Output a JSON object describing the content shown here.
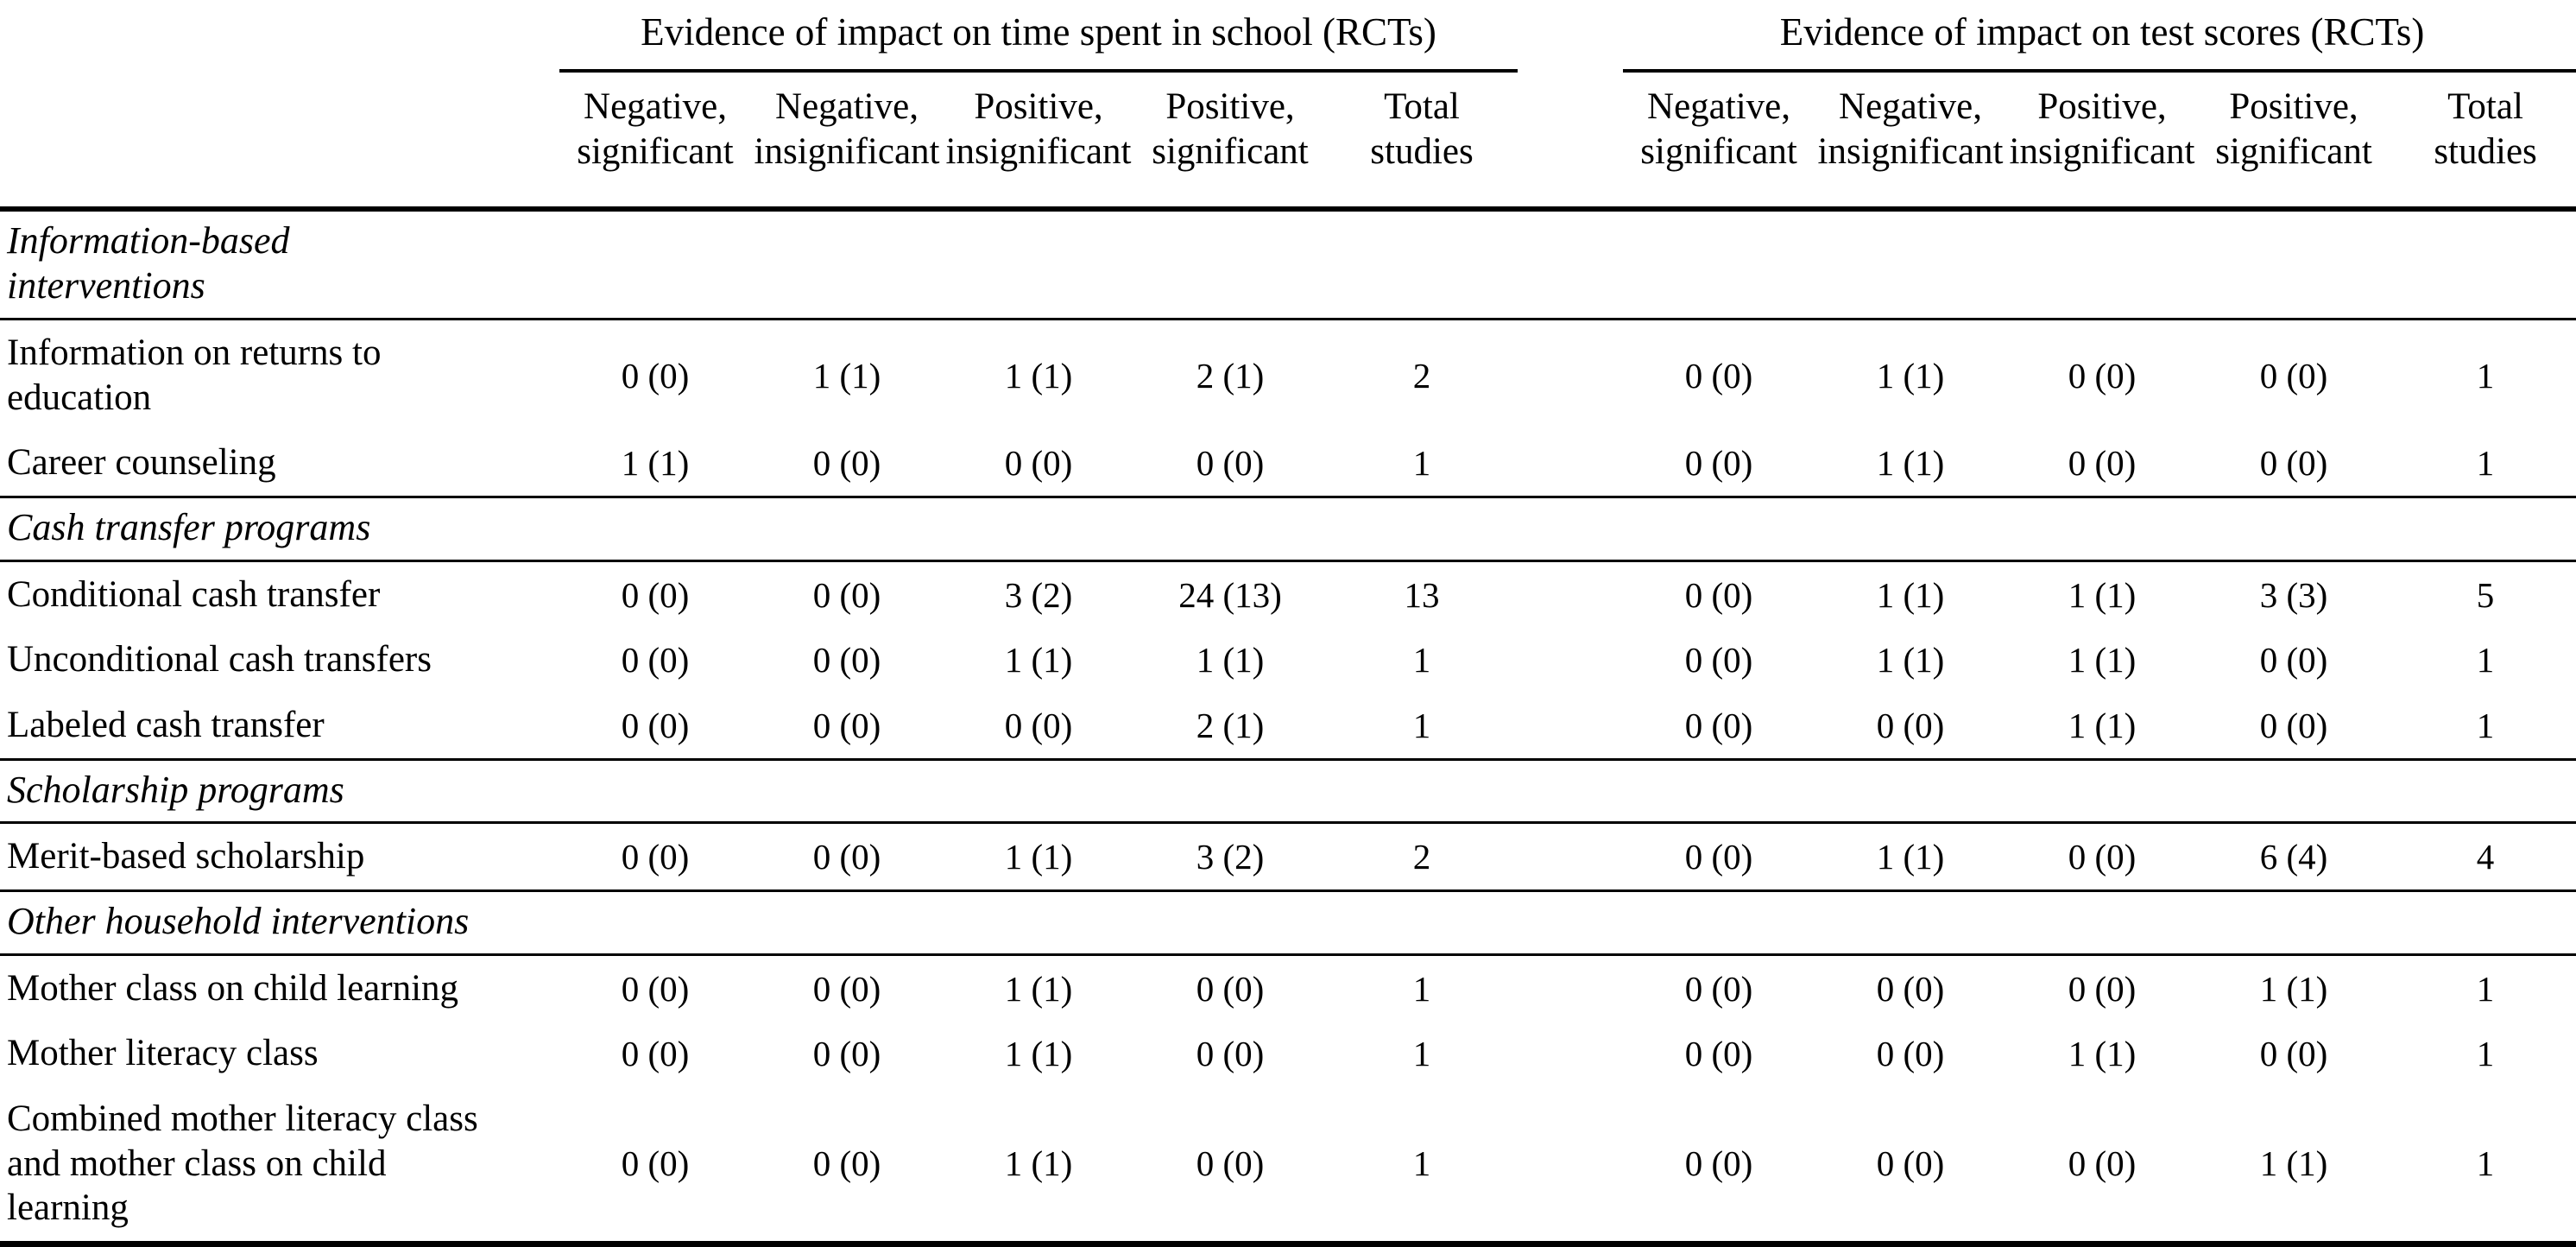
{
  "page": {
    "background": "#ffffff",
    "text_color": "#000000",
    "rule_color": "#000000"
  },
  "table": {
    "groups": [
      {
        "title": "Evidence of impact on time spent in school (RCTs)"
      },
      {
        "title": "Evidence of impact on test scores (RCTs)"
      }
    ],
    "columns": [
      {
        "line1": "Negative,",
        "line2": "significant"
      },
      {
        "line1": "Negative,",
        "line2": "insignificant"
      },
      {
        "line1": "Positive,",
        "line2": "insignificant"
      },
      {
        "line1": "Positive,",
        "line2": "significant"
      },
      {
        "line1": "Total",
        "line2": "studies"
      }
    ],
    "sections": [
      {
        "title_lines": [
          "Information-based",
          "interventions"
        ],
        "rows": [
          {
            "label_lines": [
              "Information on returns to",
              "education"
            ],
            "school": [
              "0 (0)",
              "1 (1)",
              "1 (1)",
              "2 (1)",
              "2"
            ],
            "test": [
              "0 (0)",
              "1 (1)",
              "0 (0)",
              "0 (0)",
              "1"
            ]
          },
          {
            "label_lines": [
              "Career counseling"
            ],
            "school": [
              "1 (1)",
              "0 (0)",
              "0 (0)",
              "0 (0)",
              "1"
            ],
            "test": [
              "0 (0)",
              "1 (1)",
              "0 (0)",
              "0 (0)",
              "1"
            ]
          }
        ]
      },
      {
        "title_lines": [
          "Cash transfer programs"
        ],
        "rows": [
          {
            "label_lines": [
              "Conditional cash transfer"
            ],
            "school": [
              "0 (0)",
              "0 (0)",
              "3 (2)",
              "24 (13)",
              "13"
            ],
            "test": [
              "0 (0)",
              "1 (1)",
              "1 (1)",
              "3 (3)",
              "5"
            ]
          },
          {
            "label_lines": [
              "Unconditional cash transfers"
            ],
            "school": [
              "0 (0)",
              "0 (0)",
              "1 (1)",
              "1 (1)",
              "1"
            ],
            "test": [
              "0 (0)",
              "1 (1)",
              "1 (1)",
              "0 (0)",
              "1"
            ]
          },
          {
            "label_lines": [
              "Labeled cash transfer"
            ],
            "school": [
              "0 (0)",
              "0 (0)",
              "0 (0)",
              "2 (1)",
              "1"
            ],
            "test": [
              "0 (0)",
              "0 (0)",
              "1 (1)",
              "0 (0)",
              "1"
            ]
          }
        ]
      },
      {
        "title_lines": [
          "Scholarship programs"
        ],
        "rows": [
          {
            "label_lines": [
              "Merit-based scholarship"
            ],
            "school": [
              "0 (0)",
              "0 (0)",
              "1 (1)",
              "3 (2)",
              "2"
            ],
            "test": [
              "0 (0)",
              "1 (1)",
              "0 (0)",
              "6 (4)",
              "4"
            ]
          }
        ]
      },
      {
        "title_lines": [
          "Other household interventions"
        ],
        "rows": [
          {
            "label_lines": [
              "Mother class on child learning"
            ],
            "school": [
              "0 (0)",
              "0 (0)",
              "1 (1)",
              "0 (0)",
              "1"
            ],
            "test": [
              "0 (0)",
              "0 (0)",
              "0 (0)",
              "1 (1)",
              "1"
            ]
          },
          {
            "label_lines": [
              "Mother literacy class"
            ],
            "school": [
              "0 (0)",
              "0 (0)",
              "1 (1)",
              "0 (0)",
              "1"
            ],
            "test": [
              "0 (0)",
              "0 (0)",
              "1 (1)",
              "0 (0)",
              "1"
            ]
          },
          {
            "label_lines": [
              "Combined mother literacy class",
              "and mother class on child",
              "learning"
            ],
            "school": [
              "0 (0)",
              "0 (0)",
              "1 (1)",
              "0 (0)",
              "1"
            ],
            "test": [
              "0 (0)",
              "0 (0)",
              "0 (0)",
              "1 (1)",
              "1"
            ]
          }
        ]
      }
    ]
  }
}
